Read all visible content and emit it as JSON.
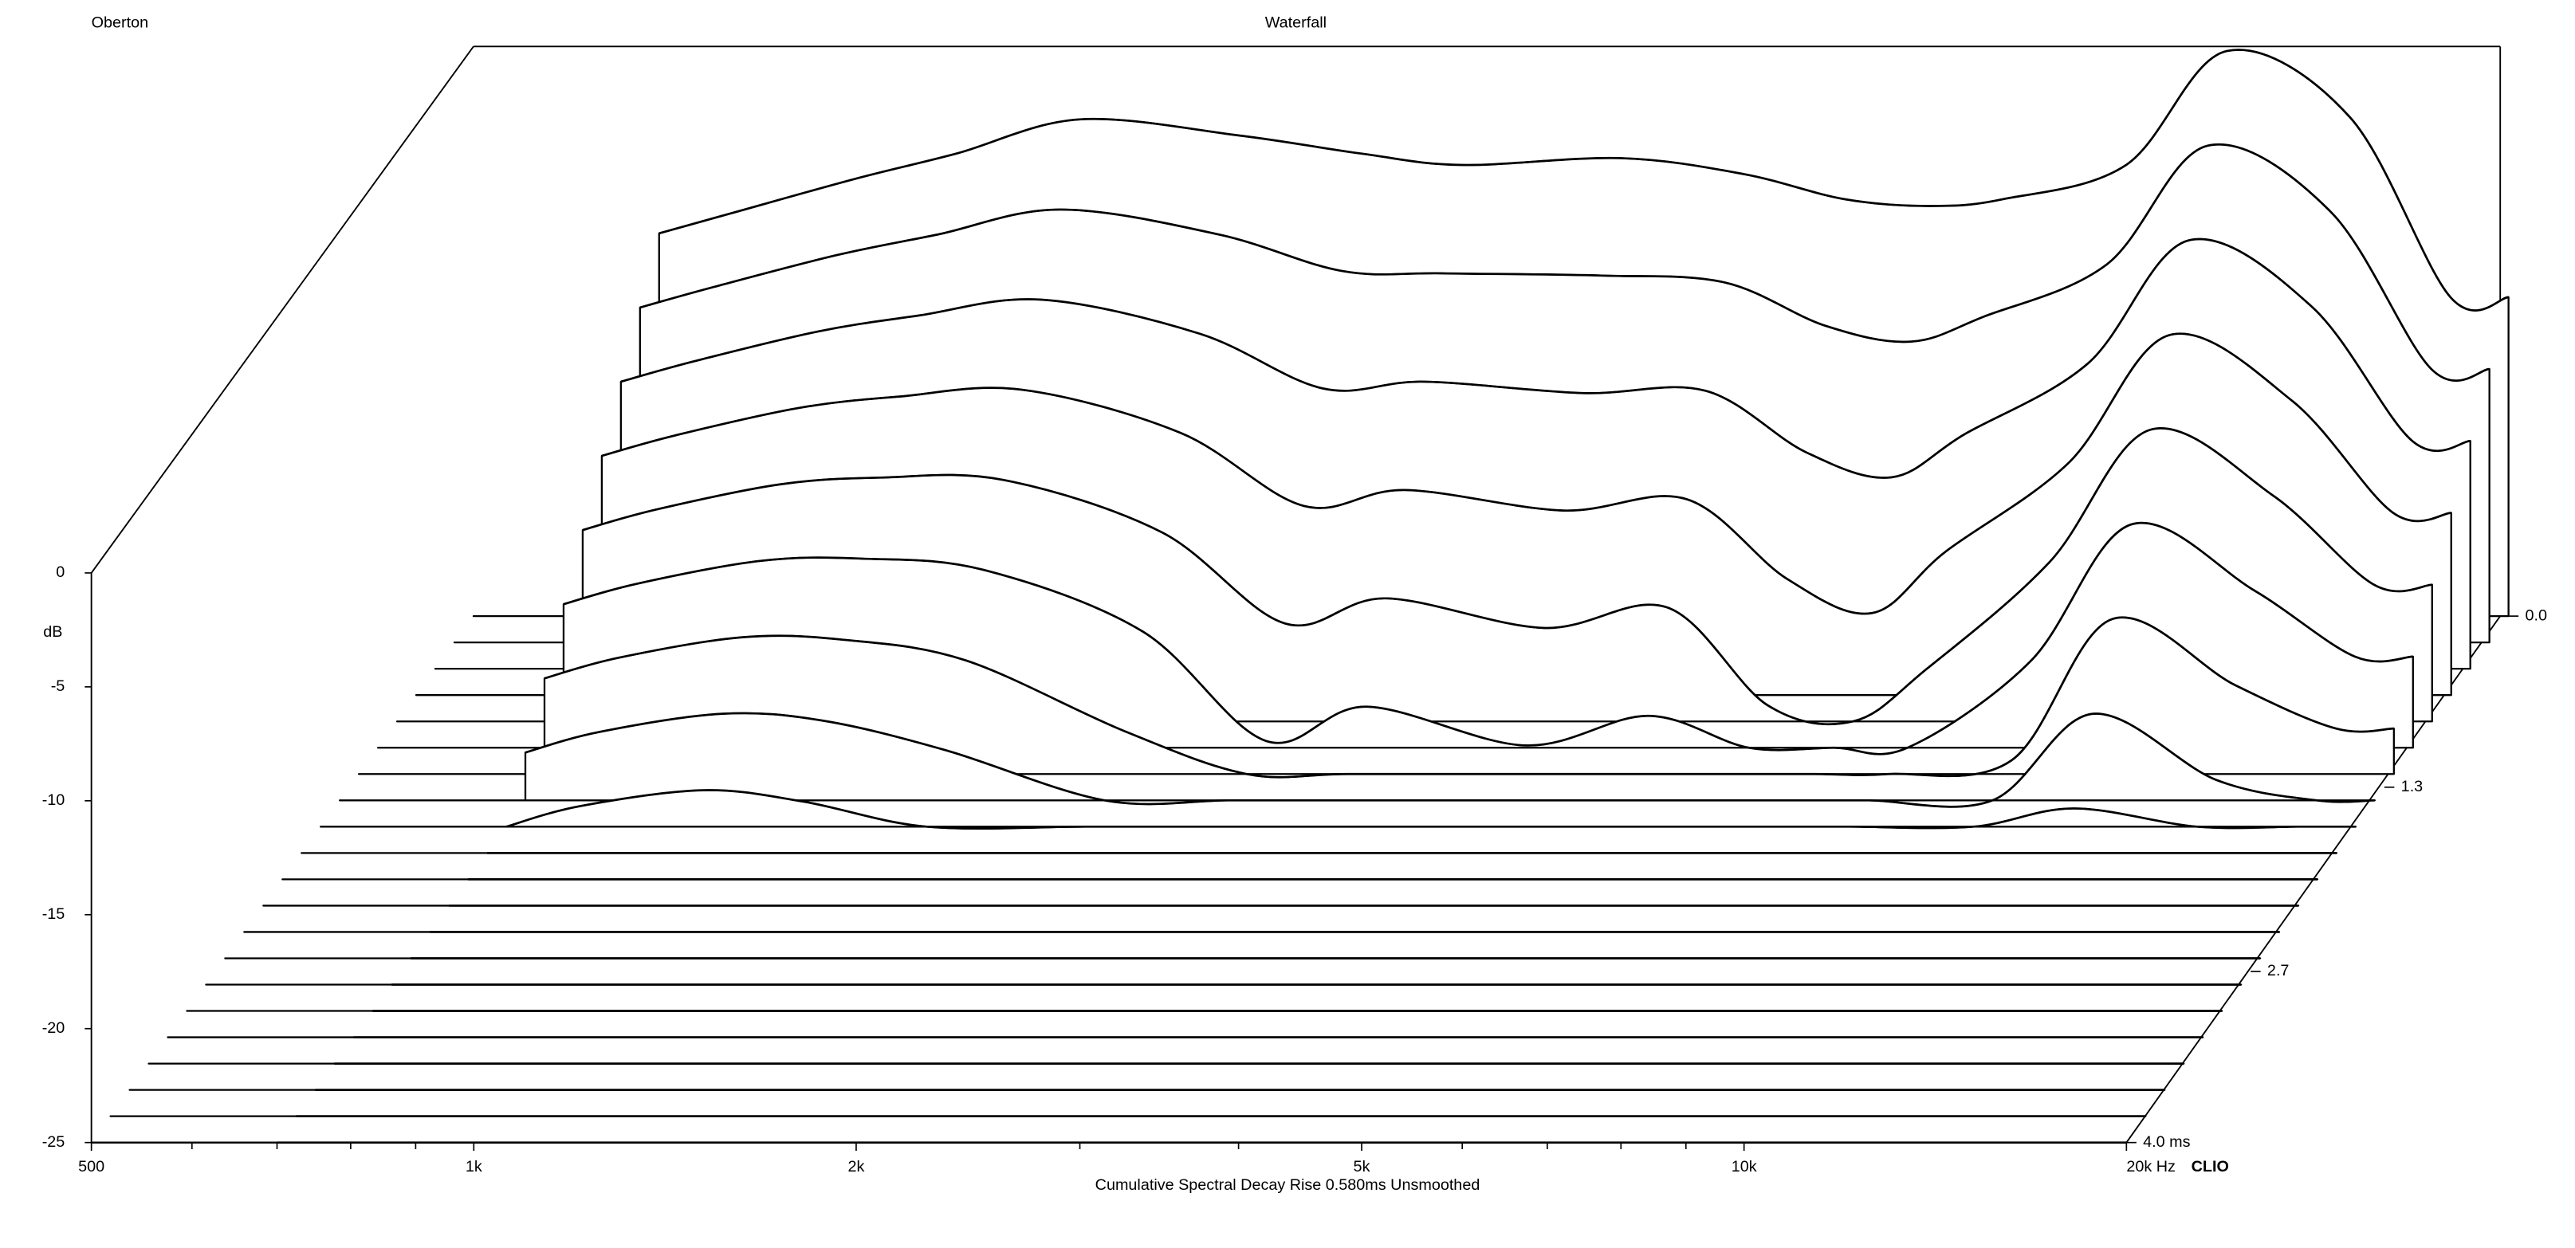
{
  "chart_data": {
    "type": "waterfall",
    "header_left": "Oberton",
    "title": "Waterfall",
    "footer_right": "CLIO",
    "xlabel": "Cumulative Spectral Decay   Rise 0.580ms   Unsmoothed",
    "ylabel": "dB",
    "log_x": true,
    "color": "#000000",
    "xlim": [
      500,
      20000
    ],
    "xticks": [
      500,
      {
        "value": 1000,
        "label": "1k"
      },
      {
        "value": 2000,
        "label": "2k"
      },
      {
        "value": 5000,
        "label": "5k"
      },
      {
        "value": 10000,
        "label": "10k"
      },
      {
        "value": 20000,
        "label": "20k Hz"
      }
    ],
    "xminor": [
      600,
      700,
      800,
      900,
      3000,
      4000,
      6000,
      7000,
      8000,
      9000
    ],
    "ylim": [
      -25,
      0
    ],
    "yticks": [
      0,
      -5,
      -10,
      -15,
      -20,
      -25
    ],
    "zlim": [
      0,
      4
    ],
    "zticks": [
      {
        "value": 0,
        "label": "0.0"
      },
      1.3,
      2.7,
      {
        "value": 4,
        "label": "4.0 ms"
      }
    ],
    "x": [
      700,
      800,
      1000,
      1200,
      1500,
      2000,
      2500,
      3000,
      4000,
      5000,
      6000,
      7000,
      8000,
      10000,
      12000,
      15000,
      18000,
      20000
    ],
    "slices": [
      {
        "time": 0,
        "values": [
          -8.2,
          -7.3,
          -5.8,
          -4.7,
          -3.2,
          -3.9,
          -4.7,
          -5.2,
          -4.9,
          -5.6,
          -6.7,
          -7,
          -6.7,
          -5.2,
          -0.2,
          -3.1,
          -11,
          -11
        ]
      },
      {
        "time": 0.2,
        "values": [
          -10.3,
          -9.4,
          -8,
          -7.1,
          -6,
          -7.1,
          -8.7,
          -8.8,
          -8.9,
          -9.2,
          -11.1,
          -11.8,
          -10.7,
          -8.4,
          -3.2,
          -6.1,
          -13,
          -13
        ]
      },
      {
        "time": 0.4,
        "values": [
          -12.4,
          -11.5,
          -10.2,
          -9.5,
          -8.8,
          -10.3,
          -12.7,
          -12.4,
          -12.9,
          -12.8,
          -15.5,
          -16.6,
          -14.7,
          -11.6,
          -6.2,
          -9.1,
          -15,
          -15
        ]
      },
      {
        "time": 0.6,
        "values": [
          -14.5,
          -13.6,
          -12.4,
          -11.9,
          -11.6,
          -13.5,
          -16.7,
          -16,
          -16.9,
          -16.4,
          -19.9,
          -21.4,
          -18.7,
          -14.8,
          -9.2,
          -12.1,
          -17,
          -17
        ]
      },
      {
        "time": 0.8,
        "values": [
          -16.6,
          -15.7,
          -14.6,
          -14.3,
          -14.4,
          -16.7,
          -20.7,
          -19.6,
          -20.9,
          -20,
          -24.3,
          -25,
          -22.7,
          -18,
          -12.2,
          -15.1,
          -19,
          -19
        ]
      },
      {
        "time": 1,
        "values": [
          -18.7,
          -17.8,
          -16.8,
          -16.7,
          -17.2,
          -19.9,
          -24.7,
          -23.2,
          -24.9,
          -23.6,
          -25,
          -25,
          -25,
          -21.2,
          -15.2,
          -18.1,
          -21,
          -21
        ]
      },
      {
        "time": 1.2,
        "values": [
          -20.8,
          -19.9,
          -19,
          -19.1,
          -20,
          -23.1,
          -25,
          -25,
          -25,
          -25,
          -25,
          -25,
          -25,
          -24.4,
          -18.2,
          -21.1,
          -23,
          -23
        ]
      },
      {
        "time": 1.4,
        "values": [
          -22.9,
          -22,
          -21.2,
          -21.5,
          -22.8,
          -25,
          -25,
          -25,
          -25,
          -25,
          -25,
          -25,
          -25,
          -25,
          -21.2,
          -24.1,
          -25,
          -25
        ]
      },
      {
        "time": 1.6,
        "values": [
          -25,
          -24.1,
          -23.4,
          -23.9,
          -25,
          -25,
          -25,
          -25,
          -25,
          -25,
          -25,
          -25,
          -25,
          -25,
          -24.2,
          -25,
          -25,
          -25
        ]
      },
      {
        "time": 1.8,
        "values": [
          -25,
          -25,
          -25,
          -25,
          -25,
          -25,
          -25,
          -25,
          -25,
          -25,
          -25,
          -25,
          -25,
          -25,
          -25,
          -25,
          -25,
          -25
        ]
      },
      {
        "time": 2,
        "values": [
          -25,
          -25,
          -25,
          -25,
          -25,
          -25,
          -25,
          -25,
          -25,
          -25,
          -25,
          -25,
          -25,
          -25,
          -25,
          -25,
          -25,
          -25
        ]
      },
      {
        "time": 2.2,
        "values": [
          -25,
          -25,
          -25,
          -25,
          -25,
          -25,
          -25,
          -25,
          -25,
          -25,
          -25,
          -25,
          -25,
          -25,
          -25,
          -25,
          -25,
          -25
        ]
      },
      {
        "time": 2.4,
        "values": [
          -25,
          -25,
          -25,
          -25,
          -25,
          -25,
          -25,
          -25,
          -25,
          -25,
          -25,
          -25,
          -25,
          -25,
          -25,
          -25,
          -25,
          -25
        ]
      },
      {
        "time": 2.6,
        "values": [
          -25,
          -25,
          -25,
          -25,
          -25,
          -25,
          -25,
          -25,
          -25,
          -25,
          -25,
          -25,
          -25,
          -25,
          -25,
          -25,
          -25,
          -25
        ]
      },
      {
        "time": 2.8,
        "values": [
          -25,
          -25,
          -25,
          -25,
          -25,
          -25,
          -25,
          -25,
          -25,
          -25,
          -25,
          -25,
          -25,
          -25,
          -25,
          -25,
          -25,
          -25
        ]
      },
      {
        "time": 3,
        "values": [
          -25,
          -25,
          -25,
          -25,
          -25,
          -25,
          -25,
          -25,
          -25,
          -25,
          -25,
          -25,
          -25,
          -25,
          -25,
          -25,
          -25,
          -25
        ]
      },
      {
        "time": 3.2,
        "values": [
          -25,
          -25,
          -25,
          -25,
          -25,
          -25,
          -25,
          -25,
          -25,
          -25,
          -25,
          -25,
          -25,
          -25,
          -25,
          -25,
          -25,
          -25
        ]
      },
      {
        "time": 3.4,
        "values": [
          -25,
          -25,
          -25,
          -25,
          -25,
          -25,
          -25,
          -25,
          -25,
          -25,
          -25,
          -25,
          -25,
          -25,
          -25,
          -25,
          -25,
          -25
        ]
      },
      {
        "time": 3.6,
        "values": [
          -25,
          -25,
          -25,
          -25,
          -25,
          -25,
          -25,
          -25,
          -25,
          -25,
          -25,
          -25,
          -25,
          -25,
          -25,
          -25,
          -25,
          -25
        ]
      },
      {
        "time": 3.8,
        "values": [
          -25,
          -25,
          -25,
          -25,
          -25,
          -25,
          -25,
          -25,
          -25,
          -25,
          -25,
          -25,
          -25,
          -25,
          -25,
          -25,
          -25,
          -25
        ]
      },
      {
        "time": 4,
        "values": [
          -25,
          -25,
          -25,
          -25,
          -25,
          -25,
          -25,
          -25,
          -25,
          -25,
          -25,
          -25,
          -25,
          -25,
          -25,
          -25,
          -25,
          -25
        ]
      }
    ]
  }
}
